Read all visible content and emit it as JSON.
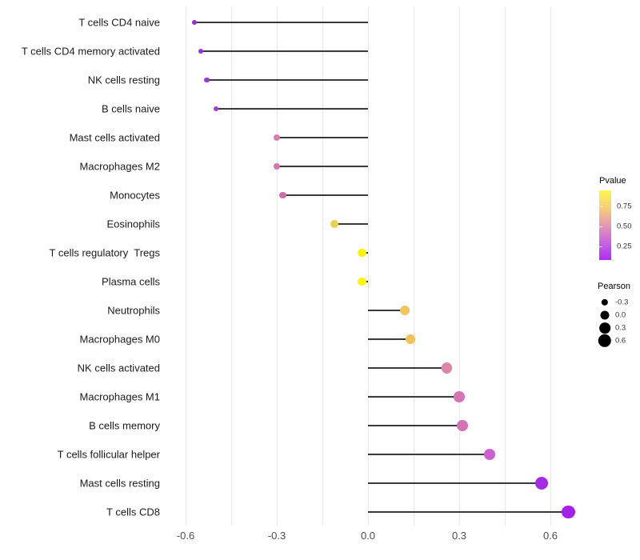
{
  "chart_data": {
    "type": "scatter",
    "variant": "lollipop",
    "title": "",
    "xlabel": "",
    "ylabel": "",
    "xlim": [
      -0.66,
      0.73
    ],
    "grid": true,
    "gridline_step": 0.15,
    "xticks": [
      {
        "value": -0.6,
        "label": "-0.6"
      },
      {
        "value": -0.3,
        "label": "-0.3"
      },
      {
        "value": 0.0,
        "label": "0.0"
      },
      {
        "value": 0.3,
        "label": "0.3"
      },
      {
        "value": 0.6,
        "label": "0.6"
      }
    ],
    "points": [
      {
        "label": "T cells CD4 naive",
        "pearson": -0.57,
        "pvalue_color": "#9230d2"
      },
      {
        "label": "T cells CD4 memory activated",
        "pearson": -0.55,
        "pvalue_color": "#9a2ed8"
      },
      {
        "label": "NK cells resting",
        "pearson": -0.53,
        "pvalue_color": "#9d33da"
      },
      {
        "label": "B cells naive",
        "pearson": -0.5,
        "pvalue_color": "#a137de"
      },
      {
        "label": "Mast cells activated",
        "pearson": -0.3,
        "pvalue_color": "#d77eb2"
      },
      {
        "label": "Macrophages M2",
        "pearson": -0.3,
        "pvalue_color": "#d378ac"
      },
      {
        "label": "Monocytes",
        "pearson": -0.28,
        "pvalue_color": "#ce6fa6"
      },
      {
        "label": "Eosinophils",
        "pearson": -0.11,
        "pvalue_color": "#edd04e"
      },
      {
        "label": "T cells regulatory  Tregs",
        "pearson": -0.02,
        "pvalue_color": "#fbf104"
      },
      {
        "label": "Plasma cells",
        "pearson": -0.02,
        "pvalue_color": "#fdf500"
      },
      {
        "label": "Neutrophils",
        "pearson": 0.12,
        "pvalue_color": "#f2c45e"
      },
      {
        "label": "Macrophages M0",
        "pearson": 0.14,
        "pvalue_color": "#f3c155"
      },
      {
        "label": "NK cells activated",
        "pearson": 0.26,
        "pvalue_color": "#dc85a9"
      },
      {
        "label": "Macrophages M1",
        "pearson": 0.3,
        "pvalue_color": "#d573b3"
      },
      {
        "label": "B cells memory",
        "pearson": 0.31,
        "pvalue_color": "#d571b5"
      },
      {
        "label": "T cells follicular helper",
        "pearson": 0.4,
        "pvalue_color": "#cb5fd3"
      },
      {
        "label": "Mast cells resting",
        "pearson": 0.57,
        "pvalue_color": "#a62be4"
      },
      {
        "label": "T cells CD8",
        "pearson": 0.66,
        "pvalue_color": "#a321e9"
      }
    ],
    "legend_position": "right",
    "legends": {
      "pvalue": {
        "title": "Pvalue",
        "gradient_top_color": "#fdf84c",
        "gradient_bottom_color": "#ae2cf7",
        "ticks": [
          {
            "value": 0.75,
            "label": "0.75"
          },
          {
            "value": 0.5,
            "label": "0.50"
          },
          {
            "value": 0.25,
            "label": "0.25"
          }
        ]
      },
      "pearson": {
        "title": "Pearson",
        "sizes": [
          {
            "value": -0.3,
            "label": "-0.3"
          },
          {
            "value": 0.0,
            "label": "0.0"
          },
          {
            "value": 0.3,
            "label": "0.3"
          },
          {
            "value": 0.6,
            "label": "0.6"
          }
        ]
      }
    },
    "stem_color": "#3a3a3a",
    "gridline_color": "#e9e9e9"
  }
}
